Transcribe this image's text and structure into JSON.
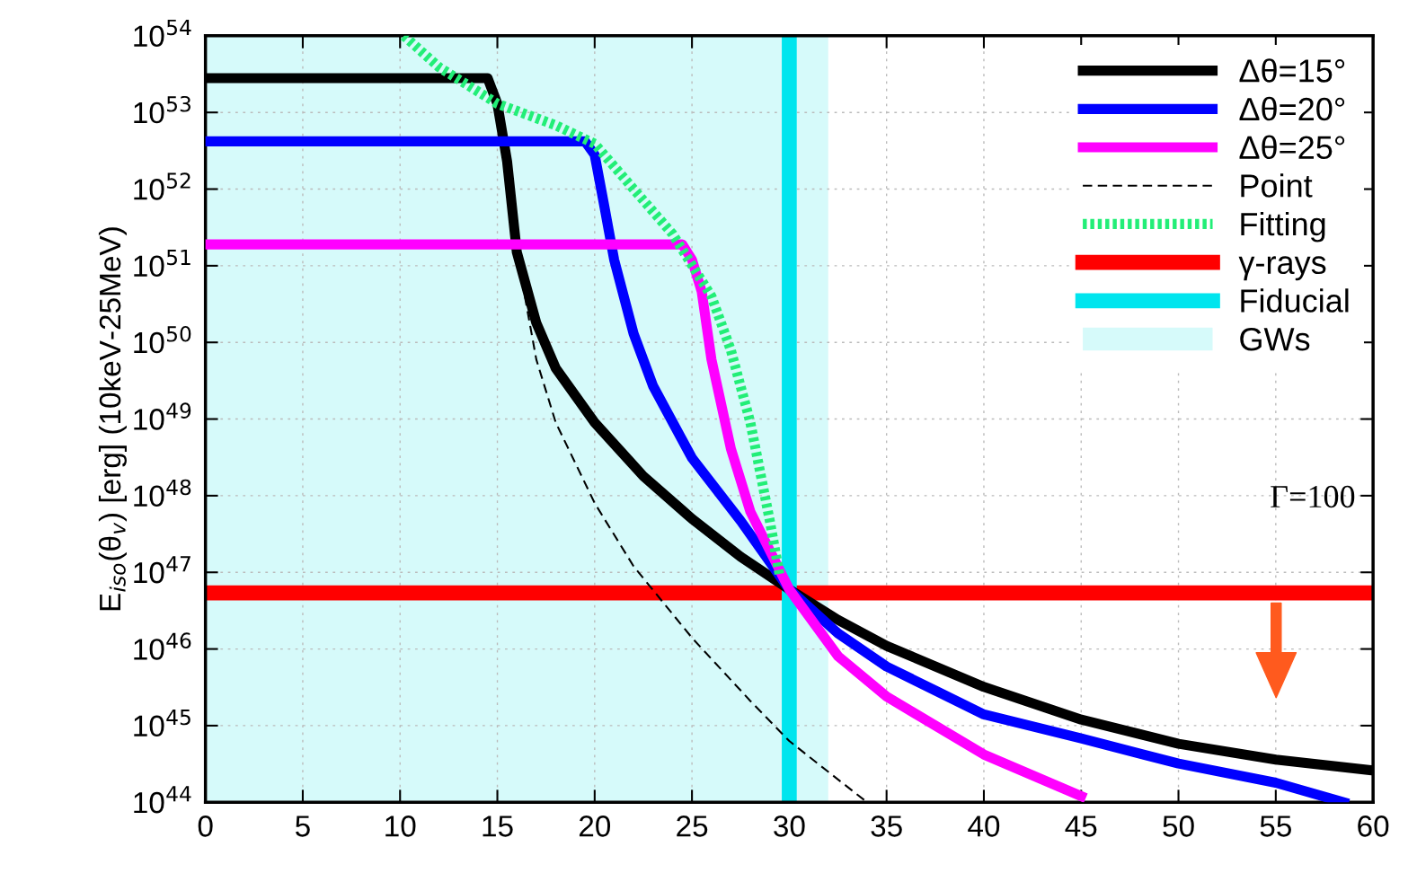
{
  "chart_data": {
    "type": "line",
    "ylabel": "E$_{iso}$(θ$_{v}$) [erg] (10keV-25MeV)",
    "xlim": [
      0,
      60
    ],
    "xticks": [
      0,
      5,
      10,
      15,
      20,
      25,
      30,
      35,
      40,
      45,
      50,
      55,
      60
    ],
    "ylim": [
      1e+44,
      1e+54
    ],
    "log": true,
    "yticks": [
      {
        "value": 1e+44,
        "label": "10$^{44}$"
      },
      {
        "value": 1e+45,
        "label": "10$^{45}$"
      },
      {
        "value": 1e+46,
        "label": "10$^{46}$"
      },
      {
        "value": 1e+47,
        "label": "10$^{47}$"
      },
      {
        "value": 1e+48,
        "label": "10$^{48}$"
      },
      {
        "value": 1e+49,
        "label": "10$^{49}$"
      },
      {
        "value": 1e+50,
        "label": "10$^{50}$"
      },
      {
        "value": 1e+51,
        "label": "10$^{51}$"
      },
      {
        "value": 1e+52,
        "label": "10$^{52}$"
      },
      {
        "value": 1e+53,
        "label": "10$^{53}$"
      },
      {
        "value": 1e+54,
        "label": "10$^{54}$"
      }
    ],
    "grid": true,
    "legend": "top right",
    "series": [
      {
        "name": "Δθ=15°",
        "color": "#000000",
        "line_style": "solid",
        "x": [
          0,
          14.5,
          15,
          15.5,
          16,
          17,
          18,
          20,
          22.5,
          25,
          27.5,
          30,
          32.5,
          35,
          40,
          45,
          50,
          55,
          60
        ],
        "values": [
          2.8e+53,
          2.8e+53,
          1.3e+53,
          2.3e+52,
          1.5e+51,
          1.8e+50,
          4.6e+49,
          9e+48,
          1.8e+48,
          5e+47,
          1.6e+47,
          6e+46,
          2.4e+46,
          1.1e+46,
          3.2e+45,
          1.2e+45,
          5.8e+44,
          3.6e+44,
          2.6e+44
        ]
      },
      {
        "name": "Δθ=20°",
        "color": "#0000ff",
        "line_style": "solid",
        "x": [
          0,
          19.5,
          20,
          20.5,
          21,
          22,
          23,
          25,
          27.5,
          30,
          32.5,
          35,
          40,
          45,
          50,
          55,
          58.5
        ],
        "values": [
          4.2e+52,
          4.2e+52,
          2.8e+52,
          5.9e+51,
          1.2e+51,
          1.3e+50,
          2.7e+49,
          3.1e+48,
          4.7e+47,
          6e+46,
          1.6e+46,
          5.9e+45,
          1.4e+45,
          6.8e+44,
          3.2e+44,
          1.8e+44,
          1e+44
        ]
      },
      {
        "name": "Δθ=25°",
        "color": "#ff00ff",
        "line_style": "solid",
        "x": [
          0,
          24.5,
          25,
          25.5,
          26,
          27,
          28,
          30,
          32.5,
          35,
          40,
          45
        ],
        "values": [
          1.9e+51,
          1.9e+51,
          1.2e+51,
          4.6e+50,
          6e+49,
          4.1e+48,
          6.2e+47,
          6e+46,
          8.1e+45,
          2.4e+45,
          4.2e+44,
          1.2e+44
        ]
      },
      {
        "name": "Point",
        "color": "#000000",
        "line_style": "dashed",
        "x": [
          16,
          17,
          18,
          20,
          22,
          25,
          28,
          30,
          32,
          34
        ],
        "values": [
          1.5e+51,
          6e+49,
          9e+48,
          8e+47,
          1.2e+47,
          1.4e+46,
          2.1e+45,
          6.3e+44,
          2.5e+44,
          1e+44
        ]
      },
      {
        "name": "Fitting",
        "color": "#22ee77",
        "line_style": "dotted",
        "x": [
          10.2,
          12,
          15,
          18,
          20,
          22,
          24,
          26,
          27,
          28,
          29,
          29.5
        ],
        "values": [
          1e+54,
          3.9e+53,
          1.3e+53,
          6.8e+52,
          3.9e+52,
          1e+52,
          2.6e+51,
          4e+50,
          7.9e+49,
          9e+48,
          4.7e+47,
          9.3e+46
        ]
      },
      {
        "name": "γ-rays",
        "color": "#ff0000",
        "line_style": "solid",
        "x": [
          0,
          60
        ],
        "values": [
          5.4e+46,
          5.4e+46
        ]
      },
      {
        "name": "Fiducial",
        "color": "#00e5ee",
        "line_style": "solid",
        "x": [
          30,
          30
        ],
        "values": [
          1e+44,
          1e+54
        ]
      },
      {
        "name": "GWs",
        "type": "area",
        "color": "#d6fafa",
        "x": [
          0,
          32
        ],
        "values": [
          1e+54,
          1e+54
        ]
      }
    ],
    "annotations": [
      "Γ=100"
    ]
  }
}
